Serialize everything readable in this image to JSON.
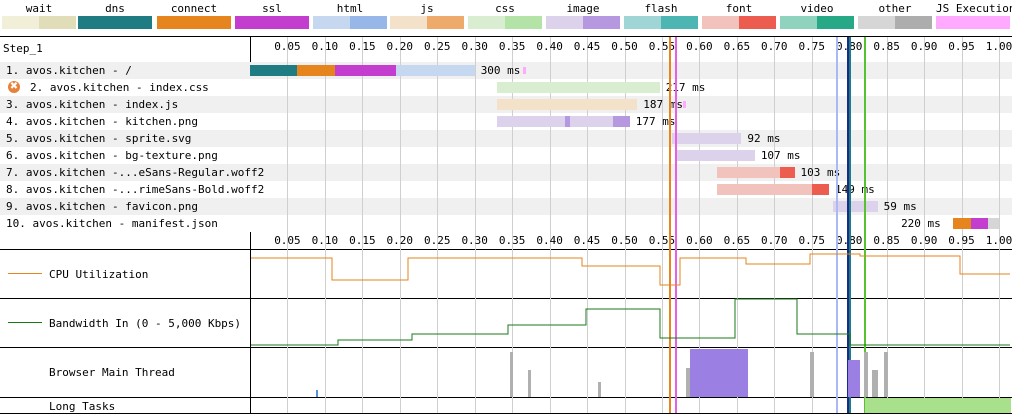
{
  "legend": [
    {
      "label": "wait",
      "colors": [
        "#f2efd8",
        "#e2ddb9"
      ]
    },
    {
      "label": "dns",
      "colors": [
        "#1f7c83",
        "#1f7c83"
      ]
    },
    {
      "label": "connect",
      "colors": [
        "#e6841d",
        "#e6841d"
      ]
    },
    {
      "label": "ssl",
      "colors": [
        "#c33ecf",
        "#c33ecf"
      ]
    },
    {
      "label": "html",
      "colors": [
        "#c6d8f0",
        "#97b7e8"
      ]
    },
    {
      "label": "js",
      "colors": [
        "#f3e1c9",
        "#eeaa6a"
      ]
    },
    {
      "label": "css",
      "colors": [
        "#d9edd0",
        "#b4e3a7"
      ]
    },
    {
      "label": "image",
      "colors": [
        "#ddd2ec",
        "#b698e0"
      ]
    },
    {
      "label": "flash",
      "colors": [
        "#9fd6d5",
        "#4eb6b2"
      ]
    },
    {
      "label": "font",
      "colors": [
        "#f2c2bd",
        "#ec5c4f"
      ]
    },
    {
      "label": "video",
      "colors": [
        "#8fd3bf",
        "#27a987"
      ]
    },
    {
      "label": "other",
      "colors": [
        "#d6d6d6",
        "#adadad"
      ]
    },
    {
      "label": "JS Execution",
      "colors": [
        "#ffaaff",
        "#ffaaff"
      ]
    }
  ],
  "step_label": "Step_1",
  "axis": {
    "ticks": [
      "0.05",
      "0.10",
      "0.15",
      "0.20",
      "0.25",
      "0.30",
      "0.35",
      "0.40",
      "0.45",
      "0.50",
      "0.55",
      "0.60",
      "0.65",
      "0.70",
      "0.75",
      "0.80",
      "0.85",
      "0.90",
      "0.95",
      "1.00"
    ]
  },
  "requests": [
    {
      "label": "1. avos.kitchen - /",
      "ms": "300 ms",
      "error": false
    },
    {
      "label": "2. avos.kitchen - index.css",
      "ms": "217 ms",
      "error": true
    },
    {
      "label": "3. avos.kitchen - index.js",
      "ms": "187 ms",
      "error": false
    },
    {
      "label": "4. avos.kitchen - kitchen.png",
      "ms": "177 ms",
      "error": false
    },
    {
      "label": "5. avos.kitchen - sprite.svg",
      "ms": "92 ms",
      "error": false
    },
    {
      "label": "6. avos.kitchen - bg-texture.png",
      "ms": "107 ms",
      "error": false
    },
    {
      "label": "7. avos.kitchen -...eSans-Regular.woff2",
      "ms": "103 ms",
      "error": false
    },
    {
      "label": "8. avos.kitchen -...rimeSans-Bold.woff2",
      "ms": "149 ms",
      "error": false
    },
    {
      "label": "9. avos.kitchen - favicon.png",
      "ms": "59 ms",
      "error": false
    },
    {
      "label": "10. avos.kitchen - manifest.json",
      "ms": "220 ms",
      "error": false
    }
  ],
  "panels": {
    "cpu": "CPU Utilization",
    "bandwidth": "Bandwidth In (0 - 5,000 Kbps)",
    "main_thread": "Browser Main Thread",
    "long_tasks": "Long Tasks"
  },
  "colors": {
    "cpu_line": "#e6841d",
    "bandwidth_line": "#1a7a1a",
    "long_task": "#a8e08c",
    "main_thread_purple": "#9b7fe3",
    "main_thread_gray": "#b0b0b0"
  }
}
